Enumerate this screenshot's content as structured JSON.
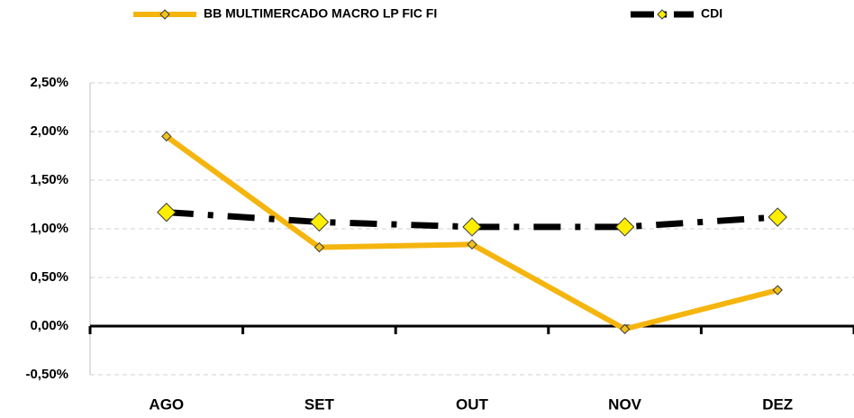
{
  "chart_data": {
    "type": "line",
    "categories": [
      "AGO",
      "SET",
      "OUT",
      "NOV",
      "DEZ"
    ],
    "series": [
      {
        "name": "BB MULTIMERCADO MACRO LP FIC FI",
        "color": "#f5b50f",
        "marker_color": "#f2c21c",
        "values": [
          1.95,
          0.81,
          0.84,
          -0.03,
          0.37
        ]
      },
      {
        "name": "CDI",
        "color": "#000000",
        "marker_color": "#ffee00",
        "values": [
          1.17,
          1.07,
          1.02,
          1.02,
          1.12
        ]
      }
    ],
    "ylim": [
      -0.5,
      2.5
    ],
    "yticks": [
      {
        "value": -0.5,
        "label": "-0,50%"
      },
      {
        "value": 0,
        "label": "0,00%"
      },
      {
        "value": 0.5,
        "label": "0,50%"
      },
      {
        "value": 1,
        "label": "1,00%"
      },
      {
        "value": 1.5,
        "label": "1,50%"
      },
      {
        "value": 2,
        "label": "2,00%"
      },
      {
        "value": 2.5,
        "label": "2,50%"
      }
    ],
    "grid": true
  }
}
